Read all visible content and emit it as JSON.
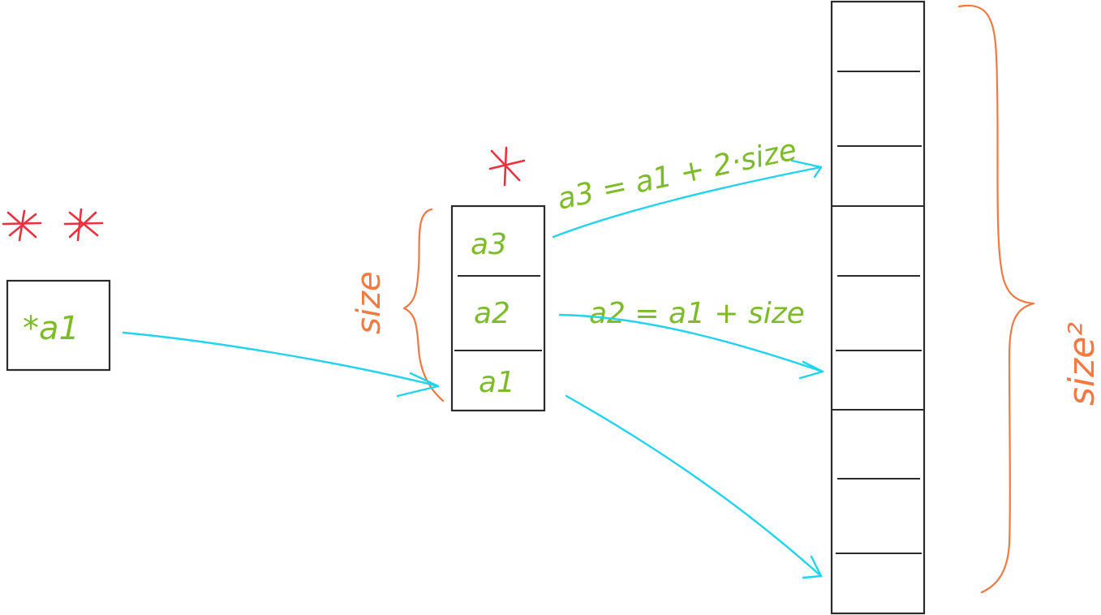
{
  "pointer_box": {
    "text": "*a1"
  },
  "pointer_stars": "* *",
  "middle": {
    "star": "*",
    "cells": [
      "a3",
      "a2",
      "a1"
    ],
    "brace_label": "size"
  },
  "annotations": {
    "a3": "a3 = a1 + 2·size",
    "a2": "a2 = a1 + size"
  },
  "right": {
    "brace_label": "size²",
    "groups": 3,
    "cells_per_group": 3
  },
  "colors": {
    "text_green": "#7dbb2a",
    "brace_orange": "#f07a42",
    "star_red": "#e8323f",
    "arrow_cyan": "#22d3ee",
    "outline": "#2b2b2b"
  }
}
